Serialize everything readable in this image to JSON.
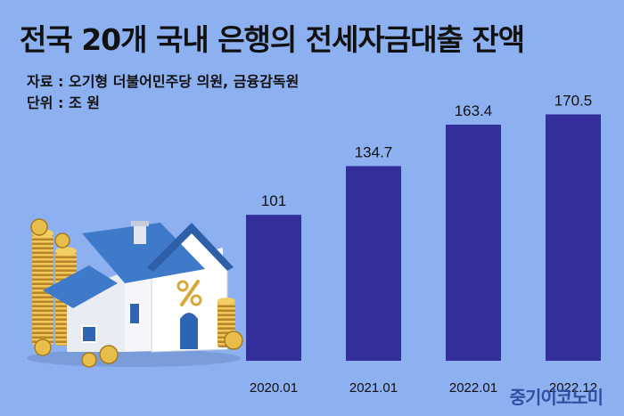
{
  "title": "전국 20개 국내 은행의 전세자금대출 잔액",
  "source": "자료 : 오기형 더불어민주당 의원, 금융감독원",
  "unit": "단위 : 조 원",
  "watermark": "중기이코노미",
  "colors": {
    "background": "#8db0f0",
    "bar": "#332e99",
    "text": "#111111"
  },
  "illustration": "house-with-gold-coins-and-percent-sign",
  "chart_data": {
    "type": "bar",
    "title": "전국 20개 국내 은행의 전세자금대출 잔액",
    "categories": [
      "2020.01",
      "2021.01",
      "2022.01",
      "2022.12"
    ],
    "values": [
      101,
      134.7,
      163.4,
      170.5
    ],
    "value_labels": [
      "101",
      "134.7",
      "163.4",
      "170.5"
    ],
    "xlabel": "",
    "ylabel": "",
    "ylim": [
      0,
      180
    ],
    "grid": false,
    "legend": "none"
  }
}
